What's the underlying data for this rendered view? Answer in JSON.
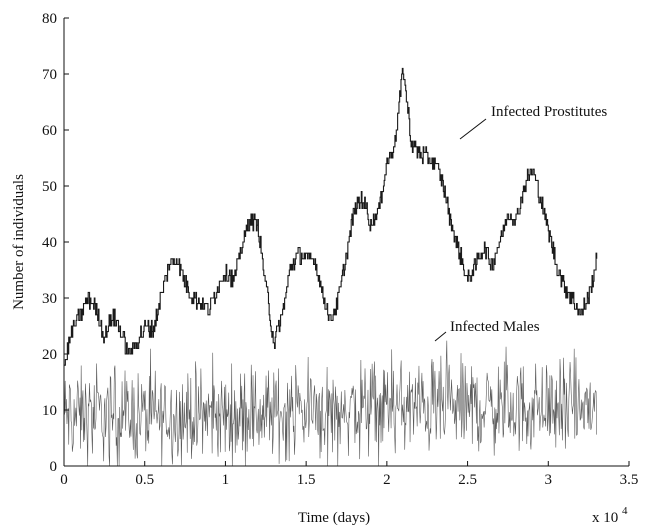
{
  "chart_data": {
    "type": "line",
    "xlabel": "Time (days)",
    "ylabel": "Number of individuals",
    "x_multiplier_label": "x 10",
    "x_multiplier_exponent": "4",
    "xlim": [
      0,
      3.5
    ],
    "ylim": [
      0,
      80
    ],
    "x_ticks": [
      "0",
      "0.5",
      "1",
      "1.5",
      "2",
      "2.5",
      "3",
      "3.5"
    ],
    "y_ticks": [
      "0",
      "10",
      "20",
      "30",
      "40",
      "50",
      "60",
      "70",
      "80"
    ],
    "grid": false,
    "line_color": "#1a1a1a",
    "noise_color": "#5a5a5a",
    "annotations": [
      {
        "text": "Infected Prostitutes",
        "series": "Infected Prostitutes",
        "x": 2.35,
        "y": 59
      },
      {
        "text": "Infected Males",
        "series": "Infected Males",
        "x": 2.31,
        "y": 21
      }
    ],
    "series": [
      {
        "name": "Infected Prostitutes",
        "style": "step",
        "x": [
          0,
          0.05,
          0.1,
          0.15,
          0.2,
          0.25,
          0.3,
          0.35,
          0.4,
          0.45,
          0.5,
          0.55,
          0.6,
          0.65,
          0.7,
          0.75,
          0.8,
          0.85,
          0.9,
          0.95,
          1.0,
          1.05,
          1.1,
          1.15,
          1.2,
          1.25,
          1.3,
          1.35,
          1.4,
          1.45,
          1.5,
          1.55,
          1.6,
          1.65,
          1.7,
          1.75,
          1.8,
          1.85,
          1.9,
          1.95,
          2.0,
          2.05,
          2.1,
          2.15,
          2.2,
          2.25,
          2.3,
          2.35,
          2.4,
          2.45,
          2.5,
          2.55,
          2.6,
          2.65,
          2.7,
          2.75,
          2.8,
          2.85,
          2.9,
          2.95,
          3.0,
          3.05,
          3.1,
          3.15,
          3.2,
          3.25,
          3.3
        ],
        "values": [
          18,
          24,
          27,
          30,
          28,
          23,
          27,
          24,
          20,
          22,
          25,
          24,
          30,
          36,
          37,
          33,
          30,
          29,
          28,
          32,
          35,
          33,
          39,
          44,
          43,
          32,
          22,
          27,
          35,
          38,
          37,
          37,
          31,
          26,
          30,
          38,
          46,
          48,
          43,
          46,
          54,
          58,
          71,
          58,
          56,
          55,
          54,
          50,
          43,
          38,
          33,
          36,
          39,
          36,
          40,
          45,
          44,
          50,
          53,
          48,
          42,
          36,
          32,
          30,
          27,
          30,
          37
        ]
      },
      {
        "name": "Infected Males",
        "style": "noise",
        "x_range": [
          0,
          3.3
        ],
        "samples": 900,
        "mean": 10,
        "range": [
          0,
          23
        ],
        "trend_mean": [
          [
            0,
            9
          ],
          [
            1.0,
            9
          ],
          [
            2.0,
            10.5
          ],
          [
            3.3,
            10.5
          ]
        ]
      }
    ]
  }
}
